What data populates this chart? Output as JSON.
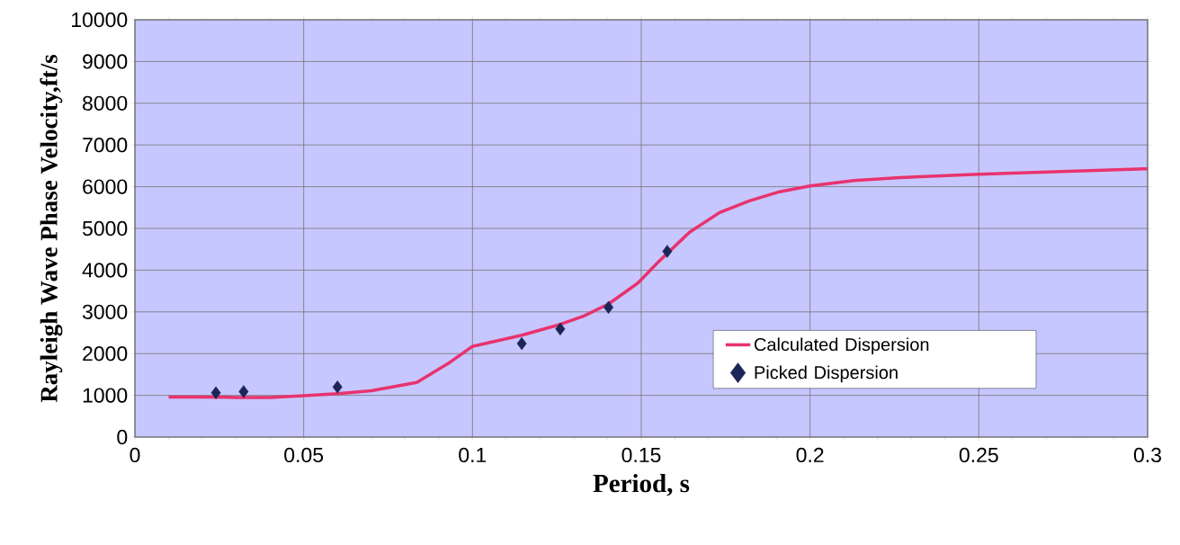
{
  "chart_data": {
    "type": "line",
    "xlabel": "Period, s",
    "ylabel": "Rayleigh Wave Phase Velocity,ft/s",
    "xlim": [
      0,
      0.3
    ],
    "xticks": [
      0,
      0.05,
      0.1,
      0.15,
      0.2,
      0.25,
      0.3
    ],
    "ylim": [
      0,
      10000
    ],
    "yticks": [
      0,
      1000,
      2000,
      3000,
      4000,
      5000,
      6000,
      7000,
      8000,
      9000,
      10000
    ],
    "grid": true,
    "legend": "bottom right",
    "series": [
      {
        "name": "Calculated Dispersion",
        "type": "line",
        "color": "#e8336e",
        "x": [
          0.01,
          0.02,
          0.03,
          0.04,
          0.05,
          0.06,
          0.07,
          0.0835,
          0.0933,
          0.0999,
          0.1146,
          0.126,
          0.133,
          0.1403,
          0.149,
          0.155,
          0.1643,
          0.1732,
          0.182,
          0.191,
          0.2,
          0.213,
          0.2265,
          0.25,
          0.3
        ],
        "values": [
          960,
          960,
          950,
          950,
          990,
          1040,
          1110,
          1310,
          1790,
          2170,
          2440,
          2700,
          2900,
          3190,
          3690,
          4190,
          4910,
          5380,
          5660,
          5880,
          6020,
          6150,
          6220,
          6300,
          6430
        ]
      },
      {
        "name": "Picked Dispersion",
        "type": "scatter",
        "marker": "diamond",
        "color": "#1b2656",
        "x": [
          0.024,
          0.0322,
          0.06,
          0.1146,
          0.126,
          0.1403,
          0.1577
        ],
        "values": [
          1060,
          1090,
          1200,
          2240,
          2590,
          3110,
          4450
        ]
      }
    ]
  }
}
